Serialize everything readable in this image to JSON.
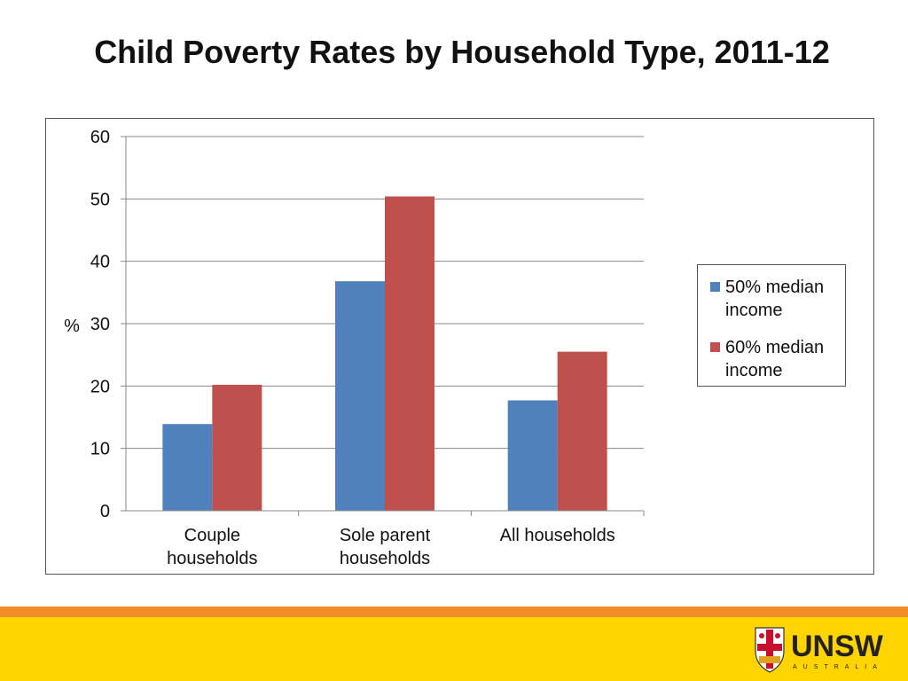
{
  "page": {
    "title": "Child Poverty Rates by Household Type, 2011-12"
  },
  "colors": {
    "series_1": "#4F81BD",
    "series_2": "#C0504D",
    "footer_orange": "#F28C28",
    "footer_yellow": "#FFD400"
  },
  "logo": {
    "wordmark": "UNSW",
    "subtext": "AUSTRALIA",
    "icon": "unsw-crest-icon"
  },
  "chart_data": {
    "type": "bar",
    "title": "",
    "xlabel": "",
    "ylabel": "%",
    "ylim": [
      0,
      60
    ],
    "yticks": [
      0,
      10,
      20,
      30,
      40,
      50,
      60
    ],
    "grid": true,
    "legend_position": "right",
    "categories": [
      [
        "Couple",
        "households"
      ],
      [
        "Sole parent",
        "households"
      ],
      [
        "All households"
      ]
    ],
    "series": [
      {
        "name": "50% median income",
        "values": [
          13.9,
          36.8,
          17.7
        ]
      },
      {
        "name": "60% median income",
        "values": [
          20.2,
          50.4,
          25.5
        ]
      }
    ]
  }
}
